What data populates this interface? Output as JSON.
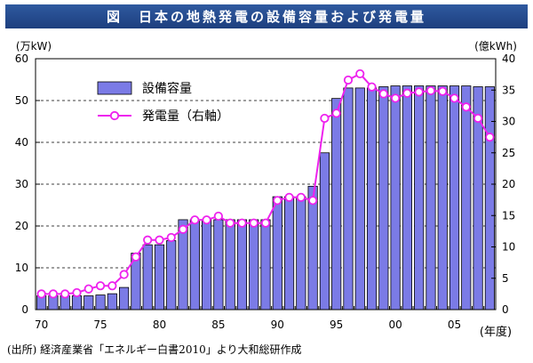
{
  "title": "図　日本の地熱発電の設備容量および発電量",
  "source": "(出所) 経済産業省「エネルギー白書2010」より大和総研作成",
  "chart_data": {
    "type": "bar+line",
    "left_axis_unit": "(万kW)",
    "right_axis_unit": "(億kWh)",
    "x_axis_unit": "(年度)",
    "y_left_range": [
      0,
      60
    ],
    "y_left_ticks": [
      "0",
      "10",
      "20",
      "30",
      "40",
      "50",
      "60"
    ],
    "y_right_range": [
      0,
      40
    ],
    "y_right_ticks": [
      "0",
      "5",
      "10",
      "15",
      "20",
      "25",
      "30",
      "35",
      "40"
    ],
    "x_tick_labels": [
      "70",
      "75",
      "80",
      "85",
      "90",
      "95",
      "00",
      "05"
    ],
    "years": [
      1970,
      1971,
      1972,
      1973,
      1974,
      1975,
      1976,
      1977,
      1978,
      1979,
      1980,
      1981,
      1982,
      1983,
      1984,
      1985,
      1986,
      1987,
      1988,
      1989,
      1990,
      1991,
      1992,
      1993,
      1994,
      1995,
      1996,
      1997,
      1998,
      1999,
      2000,
      2001,
      2002,
      2003,
      2004,
      2005,
      2006,
      2007,
      2008
    ],
    "series": [
      {
        "name": "設備容量",
        "axis": "left",
        "style": "bar",
        "color": "#7b7be6",
        "values": [
          3.3,
          3.3,
          3.3,
          3.3,
          3.3,
          3.5,
          3.8,
          5.3,
          13.5,
          15.5,
          15.5,
          16.5,
          21.5,
          21.5,
          21.5,
          21.5,
          21.5,
          21.5,
          21.5,
          21.5,
          27.0,
          27.0,
          27.0,
          29.5,
          37.5,
          50.5,
          53.0,
          53.0,
          53.0,
          53.3,
          53.5,
          53.5,
          53.5,
          53.5,
          53.5,
          53.5,
          53.5,
          53.3,
          53.3
        ]
      },
      {
        "name": "発電量（右軸）",
        "axis": "right",
        "style": "line",
        "color": "#ee22ee",
        "values": [
          2.5,
          2.5,
          2.5,
          2.7,
          3.3,
          3.8,
          3.8,
          5.6,
          8.4,
          11.1,
          11.1,
          11.5,
          12.8,
          14.3,
          14.3,
          14.9,
          13.8,
          13.8,
          13.8,
          13.8,
          17.4,
          17.9,
          17.9,
          17.4,
          30.5,
          31.3,
          36.6,
          37.6,
          35.5,
          34.4,
          33.7,
          34.5,
          34.7,
          34.9,
          34.8,
          33.7,
          32.3,
          30.5,
          27.5
        ]
      }
    ],
    "legend_position": "top-left",
    "grid": "horizontal dashed"
  }
}
